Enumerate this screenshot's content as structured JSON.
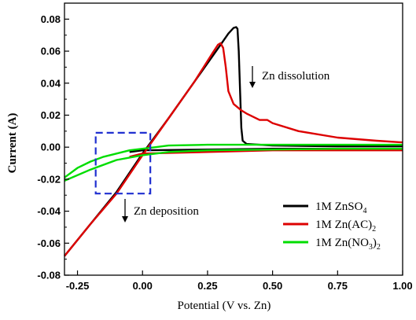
{
  "chart_data": {
    "type": "line",
    "xlabel": "Potential (V vs. Zn)",
    "ylabel": "Current (A)",
    "xlim": [
      -0.3,
      1.0
    ],
    "ylim": [
      -0.08,
      0.09
    ],
    "x_ticks": [
      -0.25,
      0.0,
      0.25,
      0.5,
      0.75,
      1.0
    ],
    "x_tick_labels": [
      "-0.25",
      "0.00",
      "0.25",
      "0.50",
      "0.75",
      "1.00"
    ],
    "y_ticks": [
      -0.08,
      -0.06,
      -0.04,
      -0.02,
      0.0,
      0.02,
      0.04,
      0.06,
      0.08
    ],
    "y_tick_labels": [
      "-0.08",
      "-0.06",
      "-0.04",
      "-0.02",
      "0.00",
      "0.02",
      "0.04",
      "0.06",
      "0.08"
    ],
    "grid": false,
    "legend_position": "bottom-right",
    "series": [
      {
        "name": "1M ZnSO4",
        "label_main": "1M ZnSO",
        "label_sub": "4",
        "label_tail": "",
        "color": "#000000",
        "segments": [
          [
            [
              -0.3,
              -0.068
            ],
            [
              -0.2,
              -0.048
            ],
            [
              -0.1,
              -0.028
            ],
            [
              0.0,
              -0.004
            ],
            [
              0.1,
              0.018
            ],
            [
              0.2,
              0.041
            ],
            [
              0.3,
              0.064
            ],
            [
              0.33,
              0.071
            ],
            [
              0.35,
              0.0745
            ],
            [
              0.36,
              0.075
            ],
            [
              0.365,
              0.074
            ],
            [
              0.37,
              0.06
            ],
            [
              0.375,
              0.035
            ],
            [
              0.38,
              0.012
            ],
            [
              0.385,
              0.004
            ],
            [
              0.4,
              0.002
            ],
            [
              0.5,
              0.001
            ],
            [
              0.75,
              0.0005
            ],
            [
              1.0,
              0.0005
            ]
          ],
          [
            [
              1.0,
              -0.001
            ],
            [
              0.75,
              -0.001
            ],
            [
              0.5,
              -0.001
            ],
            [
              0.25,
              -0.0015
            ],
            [
              0.0,
              -0.002
            ],
            [
              -0.05,
              -0.003
            ]
          ]
        ]
      },
      {
        "name": "1M Zn(AC)2",
        "label_main": "1M Zn(AC)",
        "label_sub": "2",
        "label_tail": "",
        "color": "#dd0000",
        "segments": [
          [
            [
              -0.3,
              -0.068
            ],
            [
              -0.2,
              -0.048
            ],
            [
              -0.1,
              -0.029
            ],
            [
              0.0,
              -0.005
            ],
            [
              0.1,
              0.018
            ],
            [
              0.2,
              0.041
            ],
            [
              0.27,
              0.059
            ],
            [
              0.29,
              0.064
            ],
            [
              0.3,
              0.065
            ],
            [
              0.31,
              0.062
            ],
            [
              0.32,
              0.05
            ],
            [
              0.33,
              0.035
            ],
            [
              0.35,
              0.027
            ],
            [
              0.38,
              0.023
            ],
            [
              0.4,
              0.021
            ],
            [
              0.45,
              0.017
            ],
            [
              0.48,
              0.017
            ],
            [
              0.5,
              0.015
            ],
            [
              0.6,
              0.01
            ],
            [
              0.75,
              0.006
            ],
            [
              0.9,
              0.004
            ],
            [
              1.0,
              0.003
            ]
          ],
          [
            [
              1.0,
              -0.002
            ],
            [
              0.75,
              -0.002
            ],
            [
              0.5,
              -0.002
            ],
            [
              0.25,
              -0.003
            ],
            [
              0.0,
              -0.004
            ],
            [
              -0.05,
              -0.006
            ]
          ]
        ]
      },
      {
        "name": "1M Zn(NO3)2",
        "label_main": "1M Zn(NO",
        "label_sub": "3",
        "label_tail": ")",
        "label_sub2": "2",
        "color": "#00dd00",
        "segments": [
          [
            [
              -0.3,
              -0.019
            ],
            [
              -0.25,
              -0.013
            ],
            [
              -0.2,
              -0.009
            ],
            [
              -0.15,
              -0.006
            ],
            [
              -0.1,
              -0.004
            ],
            [
              -0.05,
              -0.002
            ],
            [
              0.0,
              -0.001
            ],
            [
              0.05,
              0.0
            ],
            [
              0.1,
              0.001
            ],
            [
              0.25,
              0.0015
            ],
            [
              0.5,
              0.0015
            ],
            [
              0.75,
              0.0015
            ],
            [
              1.0,
              0.0015
            ]
          ],
          [
            [
              1.0,
              -0.001
            ],
            [
              0.75,
              -0.001
            ],
            [
              0.5,
              -0.0015
            ],
            [
              0.25,
              -0.002
            ],
            [
              0.1,
              -0.003
            ],
            [
              0.0,
              -0.005
            ],
            [
              -0.1,
              -0.008
            ],
            [
              -0.2,
              -0.014
            ],
            [
              -0.3,
              -0.021
            ]
          ]
        ]
      }
    ],
    "annotations": [
      {
        "id": "dissolution",
        "text": "Zn dissolution"
      },
      {
        "id": "deposition",
        "text": "Zn deposition"
      }
    ],
    "highlight_box": {
      "x0": -0.18,
      "x1": 0.03,
      "y0": -0.029,
      "y1": 0.009,
      "color": "#1f2fd0"
    }
  }
}
